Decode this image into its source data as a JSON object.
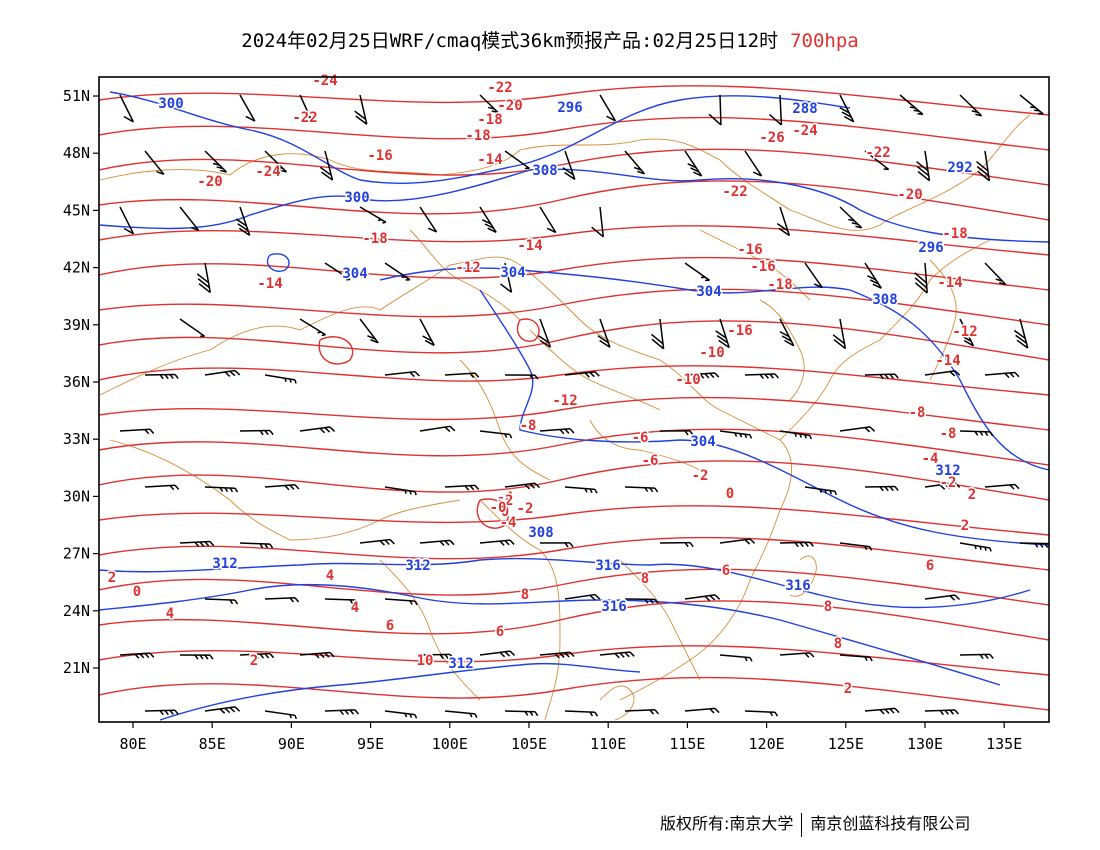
{
  "header": {
    "title": "2024年02月25日WRF/cmaq模式36km预报产品:02月25日12时",
    "level": "700hpa",
    "level_color": "#e03030"
  },
  "map": {
    "lon_ticks": [
      "80E",
      "85E",
      "90E",
      "95E",
      "100E",
      "105E",
      "110E",
      "115E",
      "120E",
      "125E",
      "130E",
      "135E"
    ],
    "lat_ticks": [
      "51N",
      "48N",
      "45N",
      "42N",
      "39N",
      "36N",
      "33N",
      "30N",
      "27N",
      "24N",
      "21N"
    ],
    "colors": {
      "temperature": "#e03030",
      "height": "#2040e0",
      "boundary": "#d98c3a",
      "wind": "#000000"
    },
    "height_labels": [
      "300",
      "300",
      "296",
      "288",
      "292",
      "304",
      "304",
      "296",
      "308",
      "304",
      "308",
      "304",
      "312",
      "312",
      "312",
      "316",
      "316",
      "316",
      "312",
      "308"
    ],
    "temperature_labels": [
      "-24",
      "-22",
      "-20",
      "-22",
      "-18",
      "-20",
      "-16",
      "-18",
      "-24",
      "-14",
      "-26",
      "-24",
      "-22",
      "-18",
      "-22",
      "-20",
      "-16",
      "-18",
      "-14",
      "-12",
      "-14",
      "-16",
      "-18",
      "-14",
      "-16",
      "-12",
      "-10",
      "-14",
      "-12",
      "-10",
      "-8",
      "-8",
      "-6",
      "-8",
      "-6",
      "-4",
      "-4",
      "-2",
      "-2",
      "0",
      "-2",
      "2",
      "0",
      "2",
      "4",
      "6",
      "4",
      "6",
      "8",
      "8",
      "8",
      "6",
      "6",
      "8",
      "10",
      "2",
      "0",
      "2",
      "4",
      "2",
      "-2",
      "-0",
      "-4"
    ]
  },
  "footer": {
    "copyright": "版权所有:南京大学",
    "company": "南京创蓝科技有限公司"
  }
}
